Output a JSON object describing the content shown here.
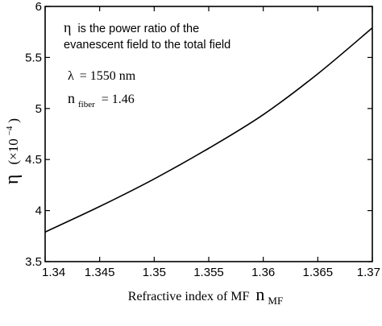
{
  "chart_data": {
    "type": "line",
    "title": "",
    "xlabel": "Refractive index of MF",
    "xlabel_symbol": "n",
    "xlabel_subscript": "MF",
    "ylabel_symbol": "η",
    "ylabel_unit_base": "(×10",
    "ylabel_unit_exp": "−4",
    "ylabel_unit_close": ")",
    "xlim": [
      1.34,
      1.37
    ],
    "ylim": [
      3.5,
      6
    ],
    "x_ticks": [
      1.34,
      1.345,
      1.35,
      1.355,
      1.36,
      1.365,
      1.37
    ],
    "x_tick_labels": [
      "1.34",
      "1.345",
      "1.35",
      "1.355",
      "1.36",
      "1.365",
      "1.37"
    ],
    "y_ticks": [
      3.5,
      4,
      4.5,
      5,
      5.5,
      6
    ],
    "y_tick_labels": [
      "3.5",
      "4",
      "4.5",
      "5",
      "5.5",
      "6"
    ],
    "grid": false,
    "line_color": "#000000",
    "series": [
      {
        "x": [
          1.34,
          1.345,
          1.35,
          1.355,
          1.36,
          1.365,
          1.37
        ],
        "y": [
          3.79,
          4.04,
          4.31,
          4.61,
          4.94,
          5.34,
          5.79
        ]
      }
    ],
    "annotations": {
      "definition_symbol": "η",
      "definition_line1": "is the  power ratio of the",
      "definition_line2": "evanescent field  to the total field",
      "wavelength_symbol": "λ",
      "wavelength_value": "= 1550 nm",
      "fiber_symbol": "n",
      "fiber_subscript": "fiber",
      "fiber_value": "= 1.46"
    }
  }
}
